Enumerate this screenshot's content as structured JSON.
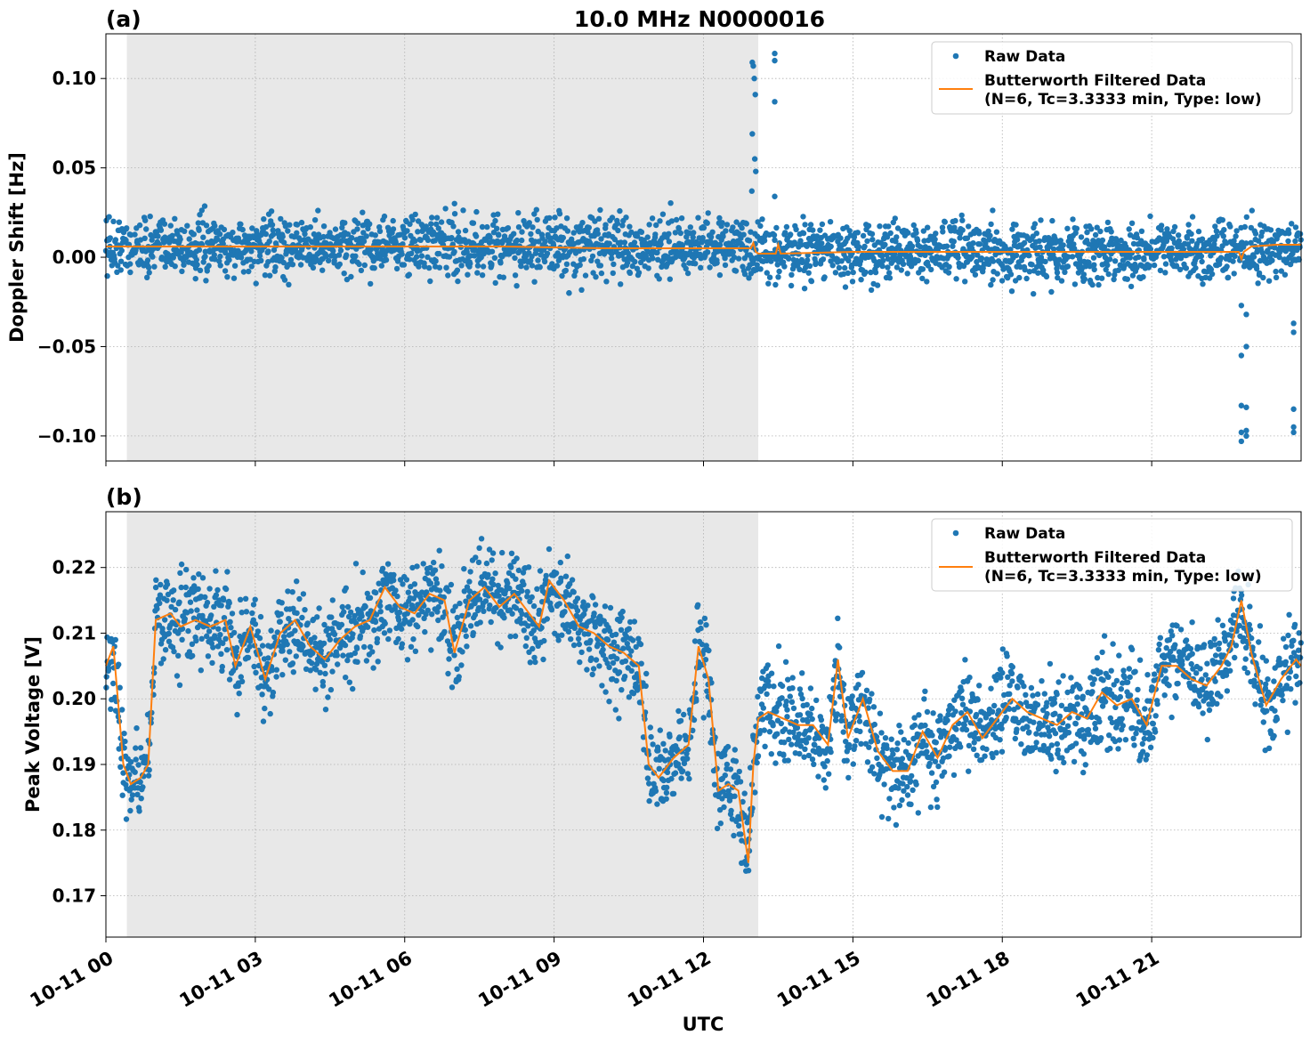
{
  "figure_title": "10.0 MHz N0000016",
  "x_axis": {
    "label": "UTC",
    "tick_labels": [
      "10-11 00",
      "10-11 03",
      "10-11 06",
      "10-11 09",
      "10-11 12",
      "10-11 15",
      "10-11 18",
      "10-11 21"
    ],
    "tick_hours": [
      0,
      3,
      6,
      9,
      12,
      15,
      18,
      21
    ],
    "range_hours": [
      0,
      24
    ]
  },
  "colors": {
    "raw": "#1f77b4",
    "filtered": "#ff7f0e",
    "shade": "#e8e8e8",
    "grid": "#b0b0b0"
  },
  "chart_data": [
    {
      "type": "scatter",
      "panel_label": "(a)",
      "title": "10.0 MHz N0000016",
      "ylabel": "Doppler Shift [Hz]",
      "ylim": [
        -0.114,
        0.125
      ],
      "yticks": [
        -0.1,
        -0.05,
        0.0,
        0.05,
        0.1
      ],
      "ytick_labels": [
        "−0.10",
        "−0.05",
        "0.00",
        "0.05",
        "0.10"
      ],
      "shaded_region_hours": [
        0.42,
        13.1
      ],
      "grid": true,
      "legend_position": "top-right",
      "series": [
        {
          "name": "Raw Data",
          "style": "points",
          "x_hours": [
            0,
            1,
            2,
            3,
            4,
            5,
            6,
            7,
            8,
            9,
            10,
            11,
            12,
            13,
            13.05,
            14,
            15,
            16,
            17,
            18,
            19,
            20,
            21,
            22,
            23,
            24
          ],
          "y_center": [
            0.006,
            0.006,
            0.006,
            0.006,
            0.006,
            0.006,
            0.006,
            0.006,
            0.006,
            0.006,
            0.006,
            0.006,
            0.006,
            0.006,
            0.003,
            0.003,
            0.003,
            0.003,
            0.003,
            0.003,
            0.003,
            0.003,
            0.003,
            0.003,
            0.004,
            0.006
          ],
          "spread_approx": 0.008,
          "outliers": [
            {
              "x_hours": 12.98,
              "y": 0.109
            },
            {
              "x_hours": 13.0,
              "y": 0.107
            },
            {
              "x_hours": 13.02,
              "y": 0.1
            },
            {
              "x_hours": 13.04,
              "y": 0.091
            },
            {
              "x_hours": 12.98,
              "y": 0.069
            },
            {
              "x_hours": 13.03,
              "y": 0.055
            },
            {
              "x_hours": 13.05,
              "y": 0.048
            },
            {
              "x_hours": 12.97,
              "y": 0.037
            },
            {
              "x_hours": 13.43,
              "y": 0.114
            },
            {
              "x_hours": 13.43,
              "y": 0.11
            },
            {
              "x_hours": 13.43,
              "y": 0.087
            },
            {
              "x_hours": 13.43,
              "y": 0.034
            },
            {
              "x_hours": 22.8,
              "y": -0.027
            },
            {
              "x_hours": 22.9,
              "y": -0.032
            },
            {
              "x_hours": 22.8,
              "y": -0.055
            },
            {
              "x_hours": 22.9,
              "y": -0.05
            },
            {
              "x_hours": 22.8,
              "y": -0.083
            },
            {
              "x_hours": 22.9,
              "y": -0.084
            },
            {
              "x_hours": 22.8,
              "y": -0.098
            },
            {
              "x_hours": 22.9,
              "y": -0.097
            },
            {
              "x_hours": 22.8,
              "y": -0.103
            },
            {
              "x_hours": 22.9,
              "y": -0.1
            },
            {
              "x_hours": 23.85,
              "y": -0.037
            },
            {
              "x_hours": 23.85,
              "y": -0.042
            },
            {
              "x_hours": 23.85,
              "y": -0.085
            },
            {
              "x_hours": 23.85,
              "y": -0.095
            },
            {
              "x_hours": 23.85,
              "y": -0.098
            },
            {
              "x_hours": 7.0,
              "y": 0.03
            },
            {
              "x_hours": 9.1,
              "y": 0.026
            },
            {
              "x_hours": 9.3,
              "y": -0.02
            },
            {
              "x_hours": 9.3,
              "y": -0.02
            },
            {
              "x_hours": 1.8,
              "y": -0.012
            }
          ]
        },
        {
          "name": "Butterworth Filtered Data\n(N=6, Tc=3.3333 min, Type: low)",
          "style": "line",
          "x_hours": [
            0,
            2,
            4,
            6,
            8,
            10,
            12,
            12.95,
            13.0,
            13.05,
            13.1,
            13.45,
            13.5,
            13.55,
            15,
            18,
            21,
            22.5,
            22.75,
            22.8,
            22.85,
            23,
            23.5,
            24
          ],
          "values": [
            0.006,
            0.006,
            0.006,
            0.006,
            0.006,
            0.005,
            0.005,
            0.005,
            0.008,
            0.003,
            0.002,
            0.002,
            0.007,
            0.002,
            0.003,
            0.003,
            0.003,
            0.003,
            0.003,
            -0.001,
            0.003,
            0.006,
            0.007,
            0.007
          ]
        }
      ],
      "legend": [
        "Raw Data",
        "Butterworth Filtered Data",
        "(N=6, Tc=3.3333 min, Type: low)"
      ]
    },
    {
      "type": "scatter",
      "panel_label": "(b)",
      "title": "",
      "ylabel": "Peak Voltage [V]",
      "ylim": [
        0.1637,
        0.2285
      ],
      "yticks": [
        0.17,
        0.18,
        0.19,
        0.2,
        0.21,
        0.22
      ],
      "ytick_labels": [
        "0.17",
        "0.18",
        "0.19",
        "0.20",
        "0.21",
        "0.22"
      ],
      "shaded_region_hours": [
        0.42,
        13.1
      ],
      "grid": true,
      "legend_position": "top-right",
      "series": [
        {
          "name": "Raw Data",
          "style": "points",
          "x_hours": [
            0,
            0.15,
            0.35,
            0.5,
            0.7,
            0.85,
            1.0,
            1.3,
            1.5,
            1.8,
            2.1,
            2.4,
            2.6,
            2.9,
            3.2,
            3.5,
            3.8,
            4.1,
            4.4,
            4.7,
            5.0,
            5.3,
            5.6,
            5.9,
            6.2,
            6.5,
            6.8,
            7.0,
            7.3,
            7.6,
            7.9,
            8.2,
            8.5,
            8.7,
            8.9,
            9.2,
            9.5,
            9.8,
            10.1,
            10.4,
            10.7,
            10.9,
            11.1,
            11.4,
            11.7,
            11.9,
            12.1,
            12.3,
            12.5,
            12.7,
            12.9,
            13.0,
            13.1,
            13.3,
            13.6,
            13.9,
            14.2,
            14.5,
            14.7,
            14.9,
            15.2,
            15.5,
            15.8,
            16.1,
            16.4,
            16.7,
            17.0,
            17.3,
            17.6,
            17.9,
            18.2,
            18.5,
            18.8,
            19.1,
            19.4,
            19.7,
            20.0,
            20.3,
            20.6,
            20.9,
            21.2,
            21.5,
            21.8,
            22.1,
            22.4,
            22.6,
            22.8,
            23.0,
            23.3,
            23.6,
            23.9,
            24.0
          ],
          "y_center": [
            0.205,
            0.208,
            0.19,
            0.187,
            0.188,
            0.19,
            0.212,
            0.213,
            0.211,
            0.212,
            0.211,
            0.212,
            0.205,
            0.211,
            0.203,
            0.21,
            0.212,
            0.208,
            0.206,
            0.209,
            0.211,
            0.212,
            0.217,
            0.214,
            0.213,
            0.216,
            0.215,
            0.207,
            0.215,
            0.217,
            0.214,
            0.216,
            0.213,
            0.211,
            0.218,
            0.215,
            0.211,
            0.21,
            0.208,
            0.207,
            0.205,
            0.19,
            0.188,
            0.191,
            0.193,
            0.208,
            0.203,
            0.186,
            0.187,
            0.186,
            0.175,
            0.19,
            0.197,
            0.198,
            0.197,
            0.196,
            0.196,
            0.193,
            0.206,
            0.194,
            0.2,
            0.192,
            0.189,
            0.189,
            0.195,
            0.191,
            0.196,
            0.198,
            0.194,
            0.197,
            0.2,
            0.198,
            0.197,
            0.196,
            0.198,
            0.197,
            0.201,
            0.199,
            0.2,
            0.196,
            0.205,
            0.205,
            0.203,
            0.202,
            0.205,
            0.208,
            0.215,
            0.207,
            0.199,
            0.203,
            0.206,
            0.205
          ],
          "spread_approx": 0.0035
        },
        {
          "name": "Butterworth Filtered Data\n(N=6, Tc=3.3333 min, Type: low)",
          "style": "line",
          "x_hours": [
            0,
            0.15,
            0.35,
            0.5,
            0.7,
            0.85,
            1.0,
            1.3,
            1.5,
            1.8,
            2.1,
            2.4,
            2.6,
            2.9,
            3.2,
            3.5,
            3.8,
            4.1,
            4.4,
            4.7,
            5.0,
            5.3,
            5.6,
            5.9,
            6.2,
            6.5,
            6.8,
            7.0,
            7.3,
            7.6,
            7.9,
            8.2,
            8.5,
            8.7,
            8.9,
            9.2,
            9.5,
            9.8,
            10.1,
            10.4,
            10.7,
            10.9,
            11.1,
            11.4,
            11.7,
            11.9,
            12.1,
            12.3,
            12.5,
            12.7,
            12.9,
            13.0,
            13.1,
            13.3,
            13.6,
            13.9,
            14.2,
            14.5,
            14.7,
            14.9,
            15.2,
            15.5,
            15.8,
            16.1,
            16.4,
            16.7,
            17.0,
            17.3,
            17.6,
            17.9,
            18.2,
            18.5,
            18.8,
            19.1,
            19.4,
            19.7,
            20.0,
            20.3,
            20.6,
            20.9,
            21.2,
            21.5,
            21.8,
            22.1,
            22.4,
            22.6,
            22.8,
            23.0,
            23.3,
            23.6,
            23.9,
            24.0
          ],
          "values": [
            0.205,
            0.208,
            0.19,
            0.187,
            0.188,
            0.19,
            0.212,
            0.213,
            0.211,
            0.212,
            0.211,
            0.212,
            0.205,
            0.211,
            0.203,
            0.21,
            0.212,
            0.208,
            0.206,
            0.209,
            0.211,
            0.212,
            0.217,
            0.214,
            0.213,
            0.216,
            0.215,
            0.207,
            0.215,
            0.217,
            0.214,
            0.216,
            0.213,
            0.211,
            0.218,
            0.215,
            0.211,
            0.21,
            0.208,
            0.207,
            0.205,
            0.19,
            0.188,
            0.191,
            0.193,
            0.208,
            0.203,
            0.186,
            0.187,
            0.186,
            0.175,
            0.19,
            0.197,
            0.198,
            0.197,
            0.196,
            0.196,
            0.193,
            0.206,
            0.194,
            0.2,
            0.192,
            0.189,
            0.189,
            0.195,
            0.191,
            0.196,
            0.198,
            0.194,
            0.197,
            0.2,
            0.198,
            0.197,
            0.196,
            0.198,
            0.197,
            0.201,
            0.199,
            0.2,
            0.196,
            0.205,
            0.205,
            0.203,
            0.202,
            0.205,
            0.208,
            0.215,
            0.207,
            0.199,
            0.203,
            0.206,
            0.205
          ]
        }
      ],
      "legend": [
        "Raw Data",
        "Butterworth Filtered Data",
        "(N=6, Tc=3.3333 min, Type: low)"
      ]
    }
  ]
}
